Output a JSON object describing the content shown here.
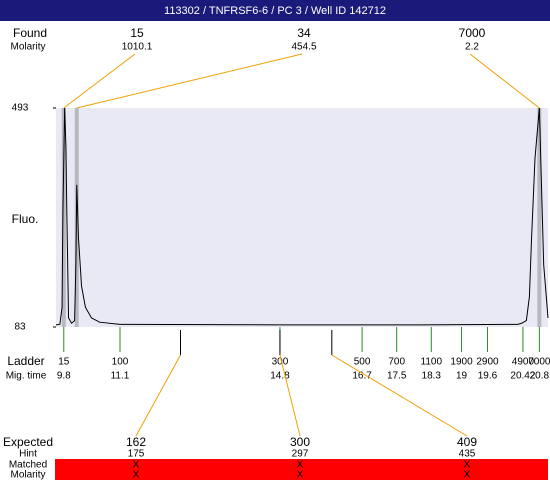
{
  "header": {
    "title": "113302 / TNFRSF6-6 / PC 3 / Well ID 142712"
  },
  "chart_data": {
    "type": "line",
    "y_label": "Fluo.",
    "color": "#000000",
    "xlim": [
      9.62,
      21.0
    ],
    "ylim": [
      83,
      493
    ],
    "yticks": [
      83,
      493
    ],
    "x": [
      9.62,
      9.71,
      9.76,
      9.78,
      9.82,
      9.85,
      9.87,
      9.91,
      9.98,
      10.05,
      10.08,
      10.1,
      10.14,
      10.21,
      10.3,
      10.44,
      10.63,
      11.1,
      14.8,
      18.0,
      20.3,
      20.39,
      20.5,
      20.57,
      20.62,
      20.7,
      20.8,
      20.9,
      21.0
    ],
    "values": [
      87,
      88,
      120,
      300,
      493,
      420,
      300,
      100,
      90,
      95,
      200,
      349,
      250,
      160,
      120,
      100,
      92,
      88,
      87,
      87,
      88,
      90,
      95,
      140,
      250,
      400,
      493,
      200,
      100
    ],
    "found": {
      "label": "Found",
      "sub_label": "Molarity",
      "peaks": [
        {
          "size": 15,
          "molarity": 1010.1,
          "time": 9.8
        },
        {
          "size": 34,
          "molarity": 454.5,
          "time": 10.1
        },
        {
          "size": 7000,
          "molarity": 2.2,
          "time": 20.8
        }
      ]
    },
    "ladder": {
      "label": "Ladder",
      "sub_label": "Mig. time",
      "sizes": [
        15,
        100,
        300,
        500,
        700,
        1100,
        1900,
        2900,
        4900,
        7000
      ],
      "times": [
        9.8,
        11.1,
        14.8,
        16.7,
        17.5,
        18.3,
        19,
        19.6,
        20.42,
        20.8
      ]
    },
    "expected": {
      "label": "Expected",
      "hint_label": "Hint",
      "matched_label": "Matched",
      "molarity_label": "Molarity",
      "sizes": [
        162,
        300,
        409
      ],
      "hints": [
        175,
        297,
        435
      ],
      "times": [
        12.5,
        14.8,
        16.0
      ],
      "matched": [
        "X",
        "X",
        "X"
      ],
      "molarity": [
        "X",
        "X",
        "X"
      ]
    }
  }
}
